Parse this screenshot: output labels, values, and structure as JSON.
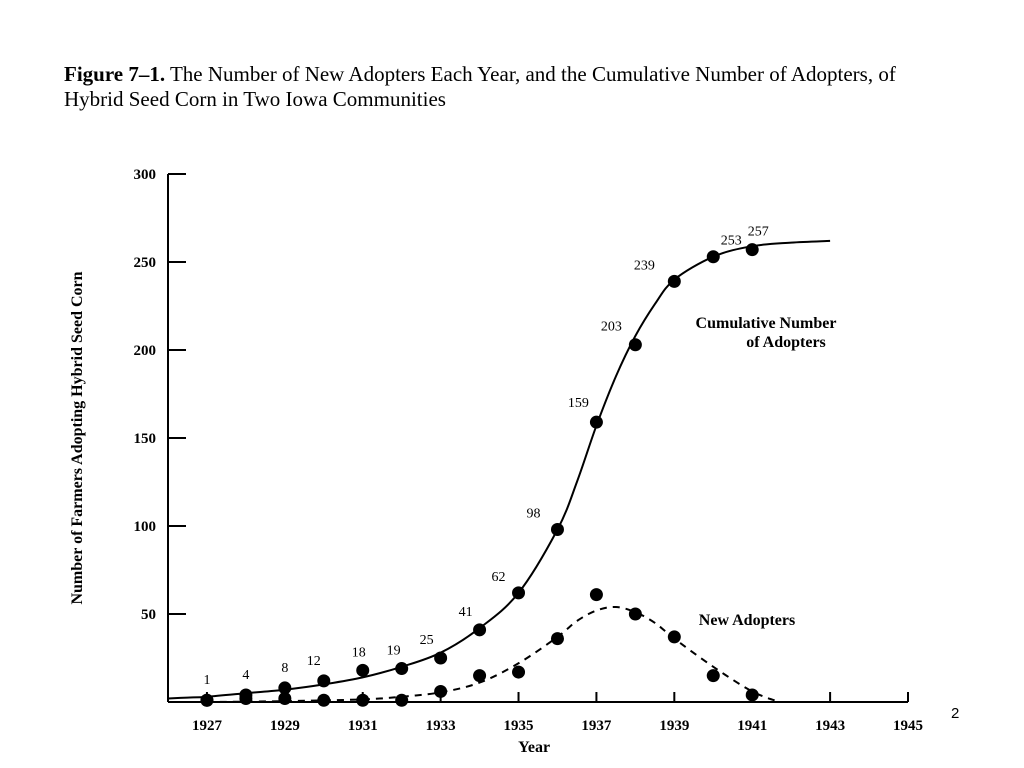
{
  "figure": {
    "label": "Figure 7–1.",
    "caption": "The Number of New Adopters Each Year, and the Cumulative Number of Adopters, of Hybrid Seed Corn in Two Iowa Communities"
  },
  "page_number": "2",
  "chart_data": {
    "type": "line",
    "title": "",
    "xlabel": "Year",
    "ylabel": "Number of Farmers Adopting Hybrid Seed Corn",
    "xlim": [
      1926,
      1945
    ],
    "ylim": [
      0,
      300
    ],
    "x_ticks": [
      1927,
      1929,
      1931,
      1933,
      1935,
      1937,
      1939,
      1941,
      1943,
      1945
    ],
    "y_ticks": [
      50,
      100,
      150,
      200,
      250,
      300
    ],
    "legend": "none",
    "grid": false,
    "series": [
      {
        "name": "Cumulative Number of Adopters",
        "style": "solid",
        "x": [
          1927,
          1928,
          1929,
          1930,
          1931,
          1932,
          1933,
          1934,
          1935,
          1936,
          1937,
          1938,
          1939,
          1940,
          1941
        ],
        "values": [
          1,
          4,
          8,
          12,
          18,
          19,
          25,
          41,
          62,
          98,
          159,
          203,
          239,
          253,
          257
        ],
        "point_labels": [
          "1",
          "4",
          "8",
          "12",
          "18",
          "19",
          "25",
          "41",
          "62",
          "98",
          "159",
          "203",
          "239",
          "253",
          "257"
        ],
        "curve_x": [
          1926,
          1926.5,
          1927,
          1928,
          1929,
          1930,
          1931,
          1932,
          1933,
          1934,
          1935,
          1936,
          1936.5,
          1937,
          1937.5,
          1938,
          1938.5,
          1939,
          1940,
          1941,
          1942,
          1943
        ],
        "curve_y": [
          2,
          2.5,
          3,
          5,
          7,
          10,
          14,
          20,
          28,
          42,
          62,
          98,
          125,
          157,
          185,
          208,
          226,
          240,
          253,
          259,
          261,
          262
        ]
      },
      {
        "name": "New Adopters",
        "style": "dashed",
        "x": [
          1927,
          1928,
          1929,
          1930,
          1931,
          1932,
          1933,
          1934,
          1935,
          1936,
          1937,
          1938,
          1939,
          1940,
          1941
        ],
        "values": [
          1,
          2,
          2,
          1,
          1,
          1,
          6,
          15,
          17,
          36,
          61,
          50,
          37,
          15,
          4
        ],
        "curve_x": [
          1927,
          1929,
          1931,
          1932,
          1933,
          1934,
          1935,
          1936,
          1936.5,
          1937,
          1937.5,
          1938,
          1938.5,
          1939,
          1940,
          1941,
          1941.7
        ],
        "curve_y": [
          0,
          0.5,
          1.5,
          3,
          5.5,
          11,
          22,
          37,
          46,
          52,
          54,
          51,
          45,
          36,
          20,
          6,
          0
        ]
      }
    ]
  }
}
